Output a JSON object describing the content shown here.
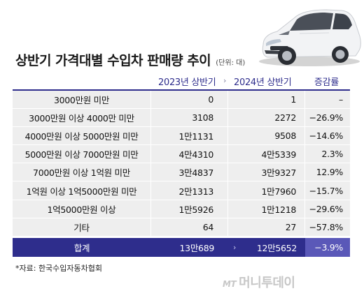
{
  "title": "상반기 가격대별 수입차 판매량 추이",
  "unit": "(단위: 대)",
  "columns": {
    "y2023": "2023년 상반기",
    "arrow": "›",
    "y2024": "2024년 상반기",
    "rate": "증감률"
  },
  "rows": [
    {
      "label": "3000만원 미만",
      "y2023": "0",
      "y2024": "1",
      "rate": "–"
    },
    {
      "label": "3000만원 이상 4000만 미만",
      "y2023": "3108",
      "y2024": "2272",
      "rate": "−26.9%"
    },
    {
      "label": "4000만원 이상 5000만원 미만",
      "y2023": "1만1131",
      "y2024": "9508",
      "rate": "−14.6%"
    },
    {
      "label": "5000만원 이상 7000만원 미만",
      "y2023": "4만4310",
      "y2024": "4만5339",
      "rate": "2.3%"
    },
    {
      "label": "7000만원 이상 1억원 미만",
      "y2023": "3만4837",
      "y2024": "3만9327",
      "rate": "12.9%"
    },
    {
      "label": "1억원 이상 1억5000만원 미만",
      "y2023": "2만1313",
      "y2024": "1만7960",
      "rate": "−15.7%"
    },
    {
      "label": "1억5000만원 이상",
      "y2023": "1만5926",
      "y2024": "1만1218",
      "rate": "−29.6%"
    },
    {
      "label": "기타",
      "y2023": "64",
      "y2024": "27",
      "rate": "−57.8%"
    }
  ],
  "total": {
    "label": "합계",
    "y2023": "13만689",
    "arrow": "›",
    "y2024": "12만5652",
    "rate": "−3.9%"
  },
  "source": "*자료: 한국수입자동차협회",
  "logo": {
    "mt": "MT",
    "name": "머니투데이"
  },
  "colors": {
    "header_text": "#2e2d8c",
    "total_bg": "#2e2d8c",
    "total_rate_bg": "#5a58b8",
    "row_bg": "#eeeeee"
  },
  "icons": {
    "illustration": "white-hatchback-car-icon"
  }
}
